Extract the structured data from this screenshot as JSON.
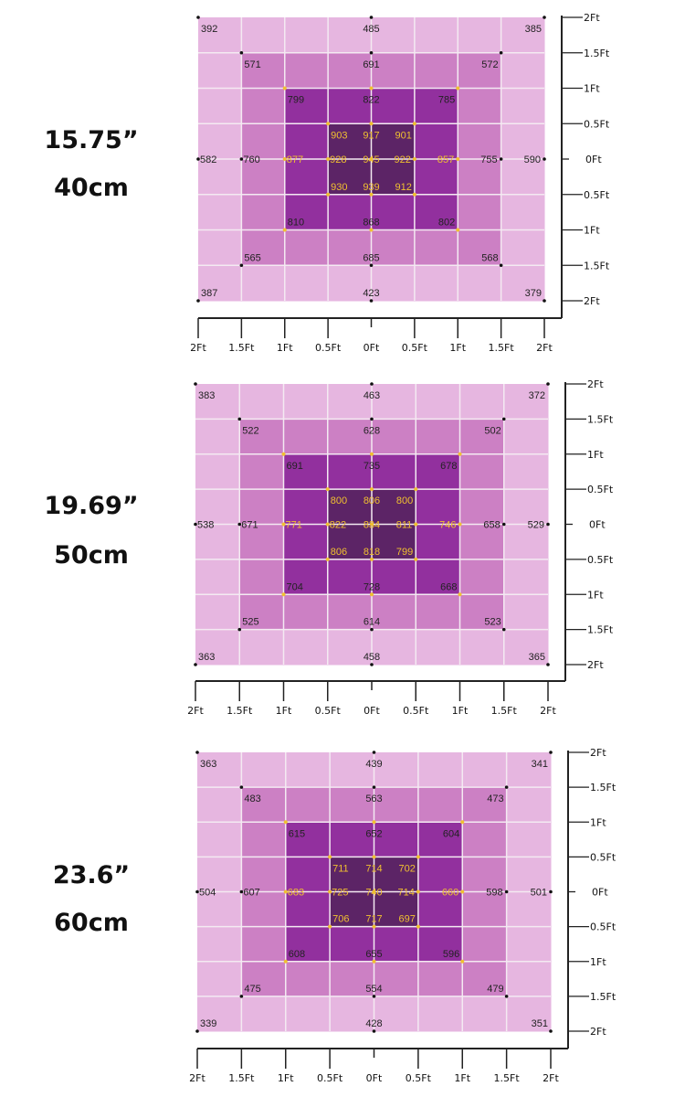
{
  "colors": {
    "level_outer": "#e6b6e0",
    "level_ring2": "#cc80c4",
    "level_ring3": "#92309e",
    "level_center": "#5c2466",
    "value_dark": "#222222",
    "value_yellow": "#f0c030",
    "grid_line": "#f4eaf2",
    "axis": "#222222"
  },
  "chart_data": [
    {
      "type": "heatmap",
      "title_lines": [
        "15.75”",
        "40cm"
      ],
      "x_ticks": [
        "2Ft",
        "1.5Ft",
        "1Ft",
        "0.5Ft",
        "0Ft",
        "0.5Ft",
        "1Ft",
        "1.5Ft",
        "2Ft"
      ],
      "y_ticks": [
        "2Ft",
        "1.5Ft",
        "1Ft",
        "0.5Ft",
        "0Ft",
        "0.5Ft",
        "1Ft",
        "1.5Ft",
        "2Ft"
      ],
      "grid_levels": "concentric 8x8 cells: outer ring, ring 2, ring 3, center 2x2",
      "points": [
        {
          "x": -2,
          "y": 2,
          "v": 392
        },
        {
          "x": 0,
          "y": 2,
          "v": 485
        },
        {
          "x": 2,
          "y": 2,
          "v": 385
        },
        {
          "x": -1.5,
          "y": 1.5,
          "v": 571
        },
        {
          "x": 0,
          "y": 1.5,
          "v": 691
        },
        {
          "x": 1.5,
          "y": 1.5,
          "v": 572
        },
        {
          "x": -1,
          "y": 1,
          "v": 799
        },
        {
          "x": 0,
          "y": 1,
          "v": 822
        },
        {
          "x": 1,
          "y": 1,
          "v": 785
        },
        {
          "x": -0.5,
          "y": 0.5,
          "v": 903
        },
        {
          "x": 0,
          "y": 0.5,
          "v": 917
        },
        {
          "x": 0.5,
          "y": 0.5,
          "v": 901
        },
        {
          "x": -2,
          "y": 0,
          "v": 582
        },
        {
          "x": -1.5,
          "y": 0,
          "v": 760
        },
        {
          "x": -1,
          "y": 0,
          "v": 877
        },
        {
          "x": -0.5,
          "y": 0,
          "v": 928
        },
        {
          "x": 0,
          "y": 0,
          "v": 945
        },
        {
          "x": 0.5,
          "y": 0,
          "v": 922
        },
        {
          "x": 1,
          "y": 0,
          "v": 857
        },
        {
          "x": 1.5,
          "y": 0,
          "v": 755
        },
        {
          "x": 2,
          "y": 0,
          "v": 590
        },
        {
          "x": -0.5,
          "y": -0.5,
          "v": 930
        },
        {
          "x": 0,
          "y": -0.5,
          "v": 939
        },
        {
          "x": 0.5,
          "y": -0.5,
          "v": 912
        },
        {
          "x": -1,
          "y": -1,
          "v": 810
        },
        {
          "x": 0,
          "y": -1,
          "v": 868
        },
        {
          "x": 1,
          "y": -1,
          "v": 802
        },
        {
          "x": -1.5,
          "y": -1.5,
          "v": 565
        },
        {
          "x": 0,
          "y": -1.5,
          "v": 685
        },
        {
          "x": 1.5,
          "y": -1.5,
          "v": 568
        },
        {
          "x": -2,
          "y": -2,
          "v": 387
        },
        {
          "x": 0,
          "y": -2,
          "v": 423
        },
        {
          "x": 2,
          "y": -2,
          "v": 379
        }
      ]
    },
    {
      "type": "heatmap",
      "title_lines": [
        "19.69”",
        "50cm"
      ],
      "x_ticks": [
        "2Ft",
        "1.5Ft",
        "1Ft",
        "0.5Ft",
        "0Ft",
        "0.5Ft",
        "1Ft",
        "1.5Ft",
        "2Ft"
      ],
      "y_ticks": [
        "2Ft",
        "1.5Ft",
        "1Ft",
        "0.5Ft",
        "0Ft",
        "0.5Ft",
        "1Ft",
        "1.5Ft",
        "2Ft"
      ],
      "grid_levels": "concentric 8x8 cells: outer ring, ring 2, ring 3, center 2x2",
      "points": [
        {
          "x": -2,
          "y": 2,
          "v": 383
        },
        {
          "x": 0,
          "y": 2,
          "v": 463
        },
        {
          "x": 2,
          "y": 2,
          "v": 372
        },
        {
          "x": -1.5,
          "y": 1.5,
          "v": 522
        },
        {
          "x": 0,
          "y": 1.5,
          "v": 628
        },
        {
          "x": 1.5,
          "y": 1.5,
          "v": 502
        },
        {
          "x": -1,
          "y": 1,
          "v": 691
        },
        {
          "x": 0,
          "y": 1,
          "v": 735
        },
        {
          "x": 1,
          "y": 1,
          "v": 678
        },
        {
          "x": -0.5,
          "y": 0.5,
          "v": 800
        },
        {
          "x": 0,
          "y": 0.5,
          "v": 806
        },
        {
          "x": 0.5,
          "y": 0.5,
          "v": 800
        },
        {
          "x": -2,
          "y": 0,
          "v": 538
        },
        {
          "x": -1.5,
          "y": 0,
          "v": 671
        },
        {
          "x": -1,
          "y": 0,
          "v": 771
        },
        {
          "x": -0.5,
          "y": 0,
          "v": 822
        },
        {
          "x": 0,
          "y": 0,
          "v": 834
        },
        {
          "x": 0.5,
          "y": 0,
          "v": 811
        },
        {
          "x": 1,
          "y": 0,
          "v": 746
        },
        {
          "x": 1.5,
          "y": 0,
          "v": 658
        },
        {
          "x": 2,
          "y": 0,
          "v": 529
        },
        {
          "x": -0.5,
          "y": -0.5,
          "v": 806
        },
        {
          "x": 0,
          "y": -0.5,
          "v": 818
        },
        {
          "x": 0.5,
          "y": -0.5,
          "v": 799
        },
        {
          "x": -1,
          "y": -1,
          "v": 704
        },
        {
          "x": 0,
          "y": -1,
          "v": 728
        },
        {
          "x": 1,
          "y": -1,
          "v": 668
        },
        {
          "x": -1.5,
          "y": -1.5,
          "v": 525
        },
        {
          "x": 0,
          "y": -1.5,
          "v": 614
        },
        {
          "x": 1.5,
          "y": -1.5,
          "v": 523
        },
        {
          "x": -2,
          "y": -2,
          "v": 363
        },
        {
          "x": 0,
          "y": -2,
          "v": 458
        },
        {
          "x": 2,
          "y": -2,
          "v": 365
        }
      ]
    },
    {
      "type": "heatmap",
      "title_lines": [
        "23.6”",
        "60cm"
      ],
      "x_ticks": [
        "2Ft",
        "1.5Ft",
        "1Ft",
        "0.5Ft",
        "0Ft",
        "0.5Ft",
        "1Ft",
        "1.5Ft",
        "2Ft"
      ],
      "y_ticks": [
        "2Ft",
        "1.5Ft",
        "1Ft",
        "0.5Ft",
        "0Ft",
        "0.5Ft",
        "1Ft",
        "1.5Ft",
        "2Ft"
      ],
      "grid_levels": "concentric 8x8 cells: outer ring, ring 2, ring 3, center 2x2",
      "points": [
        {
          "x": -2,
          "y": 2,
          "v": 363
        },
        {
          "x": 0,
          "y": 2,
          "v": 439
        },
        {
          "x": 2,
          "y": 2,
          "v": 341
        },
        {
          "x": -1.5,
          "y": 1.5,
          "v": 483
        },
        {
          "x": 0,
          "y": 1.5,
          "v": 563
        },
        {
          "x": 1.5,
          "y": 1.5,
          "v": 473
        },
        {
          "x": -1,
          "y": 1,
          "v": 615
        },
        {
          "x": 0,
          "y": 1,
          "v": 652
        },
        {
          "x": 1,
          "y": 1,
          "v": 604
        },
        {
          "x": -0.5,
          "y": 0.5,
          "v": 711
        },
        {
          "x": 0,
          "y": 0.5,
          "v": 714
        },
        {
          "x": 0.5,
          "y": 0.5,
          "v": 702
        },
        {
          "x": -2,
          "y": 0,
          "v": 504
        },
        {
          "x": -1.5,
          "y": 0,
          "v": 607
        },
        {
          "x": -1,
          "y": 0,
          "v": 683
        },
        {
          "x": -0.5,
          "y": 0,
          "v": 725
        },
        {
          "x": 0,
          "y": 0,
          "v": 740
        },
        {
          "x": 0.5,
          "y": 0,
          "v": 714
        },
        {
          "x": 1,
          "y": 0,
          "v": 660
        },
        {
          "x": 1.5,
          "y": 0,
          "v": 598
        },
        {
          "x": 2,
          "y": 0,
          "v": 501
        },
        {
          "x": -0.5,
          "y": -0.5,
          "v": 706
        },
        {
          "x": 0,
          "y": -0.5,
          "v": 717
        },
        {
          "x": 0.5,
          "y": -0.5,
          "v": 697
        },
        {
          "x": -1,
          "y": -1,
          "v": 608
        },
        {
          "x": 0,
          "y": -1,
          "v": 655
        },
        {
          "x": 1,
          "y": -1,
          "v": 596
        },
        {
          "x": -1.5,
          "y": -1.5,
          "v": 475
        },
        {
          "x": 0,
          "y": -1.5,
          "v": 554
        },
        {
          "x": 1.5,
          "y": -1.5,
          "v": 479
        },
        {
          "x": -2,
          "y": -2,
          "v": 339
        },
        {
          "x": 0,
          "y": -2,
          "v": 428
        },
        {
          "x": 2,
          "y": -2,
          "v": 351
        }
      ]
    }
  ]
}
